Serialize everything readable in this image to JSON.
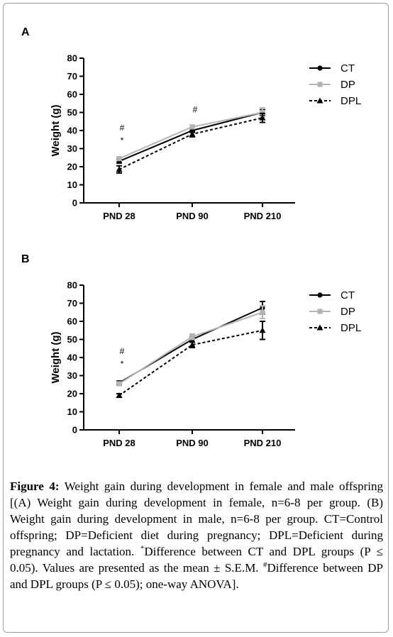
{
  "chart_data": [
    {
      "type": "line",
      "panel_label": "A",
      "ylabel": "Weight (g)",
      "categories": [
        "PND 28",
        "PND 90",
        "PND 210"
      ],
      "ylim": [
        0,
        80
      ],
      "yticks": [
        0,
        10,
        20,
        30,
        40,
        50,
        60,
        70,
        80
      ],
      "legend_position": "top-right",
      "series": [
        {
          "name": "CT",
          "values": [
            23,
            40,
            50
          ],
          "errors": [
            1,
            1,
            1.5
          ],
          "color": "#000000",
          "marker": "circle",
          "dash": "solid"
        },
        {
          "name": "DP",
          "values": [
            24.5,
            42,
            50
          ],
          "errors": [
            1,
            1,
            2.5
          ],
          "color": "#b4b4b4",
          "marker": "square",
          "dash": "solid"
        },
        {
          "name": "DPL",
          "values": [
            18.5,
            38,
            47
          ],
          "errors": [
            2,
            1.5,
            2.5
          ],
          "color": "#000000",
          "marker": "triangle",
          "dash": "dashed"
        }
      ],
      "annotations": [
        {
          "category": "PND 28",
          "text": "#",
          "y": 40
        },
        {
          "category": "PND 28",
          "text": "*",
          "y": 33
        },
        {
          "category": "PND 90",
          "text": "#",
          "y": 50
        }
      ]
    },
    {
      "type": "line",
      "panel_label": "B",
      "ylabel": "Weight (g)",
      "categories": [
        "PND 28",
        "PND 90",
        "PND 210"
      ],
      "ylim": [
        0,
        80
      ],
      "yticks": [
        0,
        10,
        20,
        30,
        40,
        50,
        60,
        70,
        80
      ],
      "legend_position": "top-right",
      "series": [
        {
          "name": "CT",
          "values": [
            26,
            50,
            67.5
          ],
          "errors": [
            1,
            1.5,
            3.5
          ],
          "color": "#000000",
          "marker": "circle",
          "dash": "solid"
        },
        {
          "name": "DP",
          "values": [
            25.5,
            51.5,
            65
          ],
          "errors": [
            1,
            1.5,
            3.5
          ],
          "color": "#b4b4b4",
          "marker": "square",
          "dash": "solid"
        },
        {
          "name": "DPL",
          "values": [
            19,
            47,
            55
          ],
          "errors": [
            1,
            1.5,
            5
          ]
        }
      ],
      "annotations": [
        {
          "category": "PND 28",
          "text": "#",
          "y": 42
        },
        {
          "category": "PND 28",
          "text": "*",
          "y": 35
        }
      ]
    }
  ],
  "caption": {
    "label": "Figure 4:",
    "text_1": " Weight gain during development in female and male offspring [(A) Weight gain during development in female, n=6-8 per group. (B) Weight gain during development in male, n=6-8 per group. CT=Control offspring; DP=Deficient diet during pregnancy; DPL=Deficient during pregnancy and lactation. ",
    "sup_1": "*",
    "text_2": "Difference between CT and DPL groups (P ≤ 0.05). Values are presented as the mean ± S.E.M. ",
    "sup_2": "#",
    "text_3": "Difference between DP and DPL groups (P ≤ 0.05); one-way ANOVA]."
  }
}
